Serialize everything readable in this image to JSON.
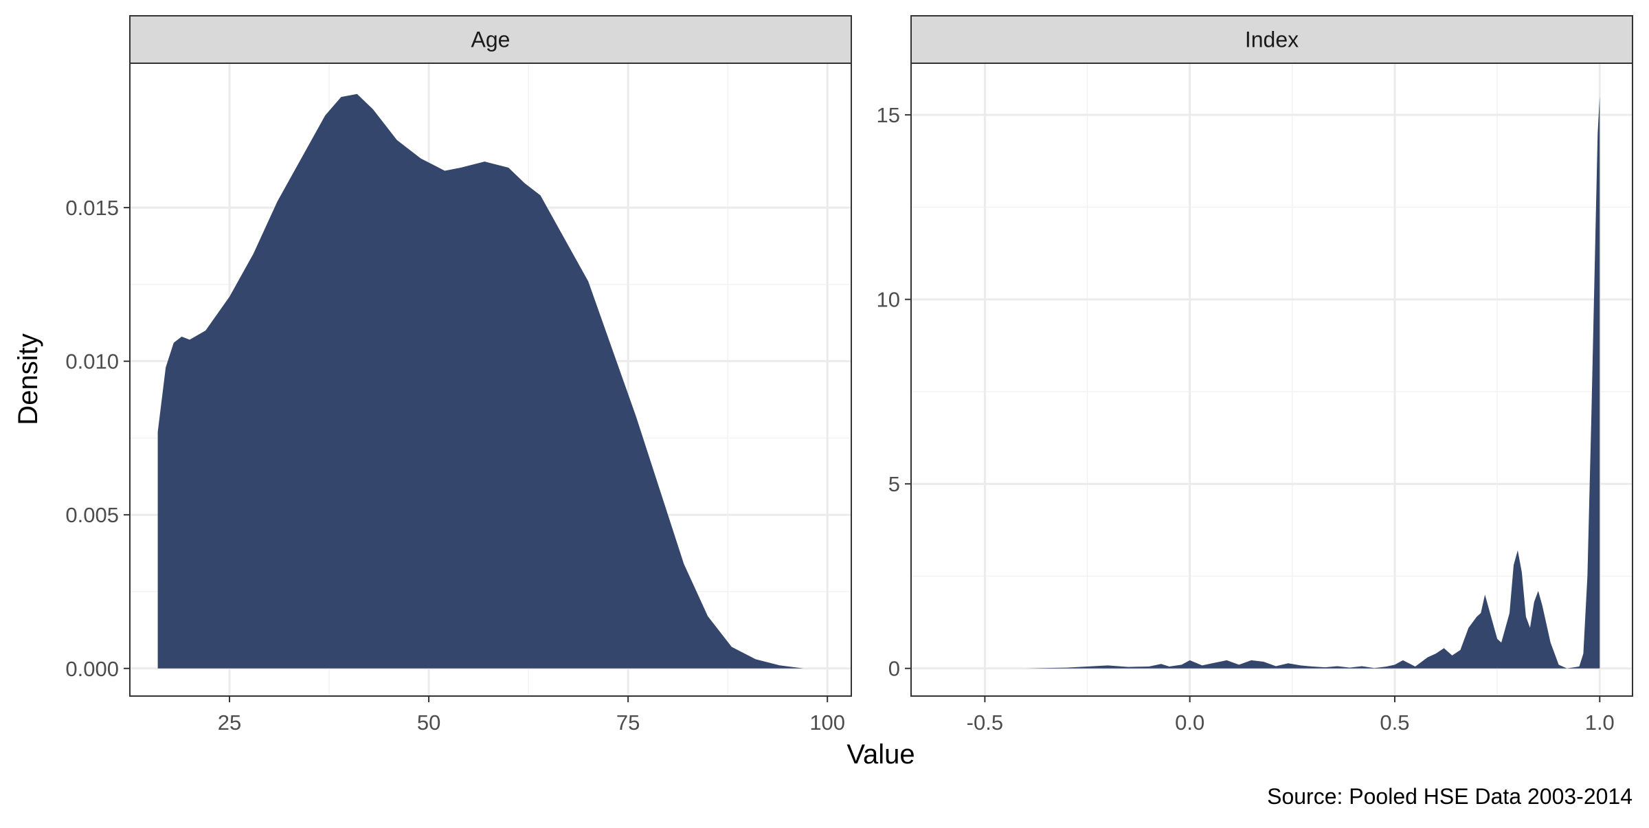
{
  "chart_data": {
    "type": "area",
    "subtype": "faceted density",
    "xlabel": "Value",
    "ylabel": "Density",
    "caption": "Source: Pooled HSE Data 2003-2014",
    "fill_color": "#34466b",
    "grid": true,
    "panels": [
      {
        "title": "Age",
        "xlim": [
          12.5,
          103
        ],
        "ylim": [
          -0.0009,
          0.0197
        ],
        "x_ticks": [
          25,
          50,
          75,
          100
        ],
        "x_tick_labels": [
          "25",
          "50",
          "75",
          "100"
        ],
        "y_ticks": [
          0,
          0.005,
          0.01,
          0.015
        ],
        "y_tick_labels": [
          "0.000",
          "0.005",
          "0.010",
          "0.015"
        ],
        "x": [
          16,
          17,
          18,
          19,
          20,
          22,
          25,
          28,
          31,
          34,
          37,
          39,
          41,
          43,
          46,
          49,
          52,
          54,
          57,
          60,
          62,
          64,
          67,
          70,
          73,
          76,
          79,
          82,
          85,
          88,
          91,
          94,
          97,
          100
        ],
        "y": [
          0.0077,
          0.0098,
          0.0106,
          0.0108,
          0.0107,
          0.011,
          0.0121,
          0.0135,
          0.0152,
          0.0166,
          0.018,
          0.0186,
          0.0187,
          0.0182,
          0.0172,
          0.0166,
          0.0162,
          0.0163,
          0.0165,
          0.0163,
          0.0158,
          0.0154,
          0.014,
          0.0126,
          0.0104,
          0.0082,
          0.0058,
          0.0034,
          0.0017,
          0.0007,
          0.0003,
          0.0001,
          0.0,
          0.0
        ]
      },
      {
        "title": "Index",
        "xlim": [
          -0.68,
          1.08
        ],
        "ylim": [
          -0.75,
          16.4
        ],
        "x_ticks": [
          -0.5,
          0.0,
          0.5,
          1.0
        ],
        "x_tick_labels": [
          "-0.5",
          "0.0",
          "0.5",
          "1.0"
        ],
        "y_ticks": [
          0,
          5,
          10,
          15
        ],
        "y_tick_labels": [
          "0",
          "5",
          "10",
          "15"
        ],
        "x": [
          -0.59,
          -0.4,
          -0.3,
          -0.25,
          -0.2,
          -0.15,
          -0.1,
          -0.07,
          -0.05,
          -0.02,
          0.0,
          0.03,
          0.06,
          0.09,
          0.12,
          0.15,
          0.18,
          0.21,
          0.24,
          0.27,
          0.3,
          0.33,
          0.36,
          0.39,
          0.42,
          0.45,
          0.48,
          0.5,
          0.52,
          0.55,
          0.58,
          0.6,
          0.62,
          0.64,
          0.66,
          0.68,
          0.7,
          0.71,
          0.72,
          0.73,
          0.75,
          0.76,
          0.78,
          0.79,
          0.8,
          0.81,
          0.82,
          0.83,
          0.84,
          0.85,
          0.86,
          0.88,
          0.9,
          0.92,
          0.95,
          0.96,
          0.97,
          0.98,
          0.99,
          0.995,
          1.0
        ],
        "y": [
          0.0,
          0.0,
          0.02,
          0.05,
          0.08,
          0.04,
          0.05,
          0.12,
          0.05,
          0.1,
          0.22,
          0.08,
          0.15,
          0.22,
          0.1,
          0.22,
          0.18,
          0.06,
          0.14,
          0.08,
          0.05,
          0.03,
          0.06,
          0.02,
          0.06,
          0.01,
          0.05,
          0.1,
          0.22,
          0.05,
          0.3,
          0.4,
          0.55,
          0.35,
          0.5,
          1.1,
          1.4,
          1.5,
          2.0,
          1.6,
          0.8,
          0.7,
          1.5,
          2.8,
          3.2,
          2.6,
          1.4,
          1.1,
          1.8,
          2.1,
          1.7,
          0.7,
          0.1,
          0.0,
          0.05,
          0.4,
          2.5,
          7.0,
          12.0,
          14.5,
          15.5
        ]
      }
    ]
  }
}
